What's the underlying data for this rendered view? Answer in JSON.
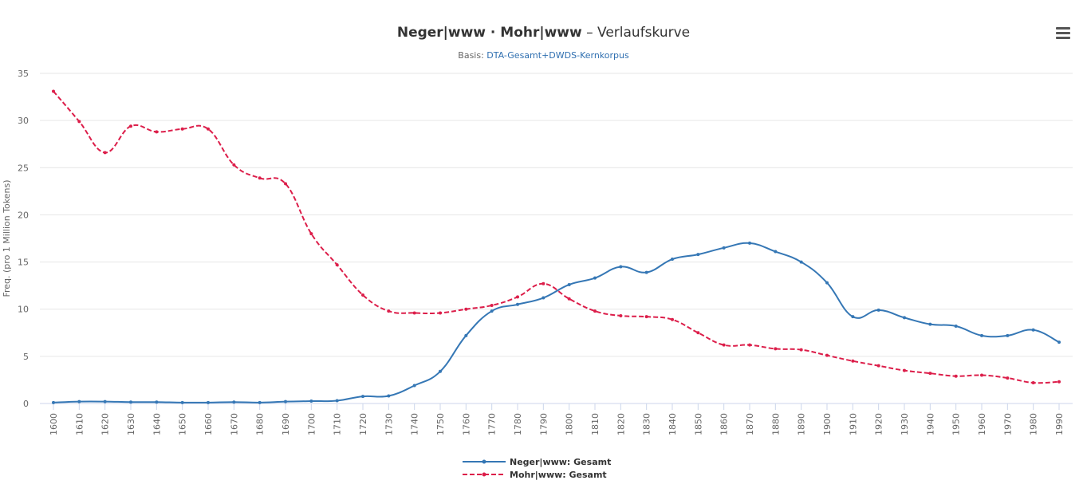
{
  "chart_data": {
    "type": "line",
    "title_bold": "Neger|www  ·  Mohr|www",
    "title_rest": " – Verlaufskurve",
    "subtitle_prefix": "Basis: ",
    "subtitle_link": "DTA-Gesamt+DWDS-Kernkorpus",
    "ylabel": "Freq. (pro 1 Million Tokens)",
    "xlabel": "",
    "ylim": [
      0,
      35
    ],
    "yticks": [
      0,
      5,
      10,
      15,
      20,
      25,
      30,
      35
    ],
    "x": [
      1600,
      1610,
      1620,
      1630,
      1640,
      1650,
      1660,
      1670,
      1680,
      1690,
      1700,
      1710,
      1720,
      1730,
      1740,
      1750,
      1760,
      1770,
      1780,
      1790,
      1800,
      1810,
      1820,
      1830,
      1840,
      1850,
      1860,
      1870,
      1880,
      1890,
      1900,
      1910,
      1920,
      1930,
      1940,
      1950,
      1960,
      1970,
      1980,
      1990
    ],
    "grid": true,
    "legend_position": "bottom-center",
    "series": [
      {
        "name": "Neger|www: Gesamt",
        "color": "#3577b5",
        "dash": false,
        "values": [
          0.1,
          0.2,
          0.2,
          0.15,
          0.15,
          0.1,
          0.1,
          0.15,
          0.1,
          0.2,
          0.25,
          0.3,
          0.75,
          0.8,
          1.9,
          3.4,
          7.2,
          9.8,
          10.5,
          11.2,
          12.6,
          13.3,
          14.5,
          13.9,
          15.3,
          15.8,
          16.5,
          17.0,
          16.1,
          15.0,
          12.8,
          9.2,
          9.9,
          9.1,
          8.4,
          8.2,
          7.2,
          7.2,
          7.8,
          6.5
        ]
      },
      {
        "name": "Mohr|www: Gesamt",
        "color": "#dc1e4a",
        "dash": true,
        "values": [
          33.1,
          29.9,
          26.6,
          29.4,
          28.8,
          29.1,
          29.1,
          25.3,
          23.9,
          23.3,
          18.0,
          14.7,
          11.5,
          9.8,
          9.6,
          9.6,
          10.0,
          10.4,
          11.3,
          12.7,
          11.1,
          9.8,
          9.3,
          9.2,
          8.9,
          7.5,
          6.2,
          6.2,
          5.8,
          5.7,
          5.1,
          4.5,
          4.0,
          3.5,
          3.2,
          2.9,
          3.0,
          2.7,
          2.2,
          2.3
        ]
      }
    ]
  },
  "menu_icon": "hamburger-menu-icon"
}
